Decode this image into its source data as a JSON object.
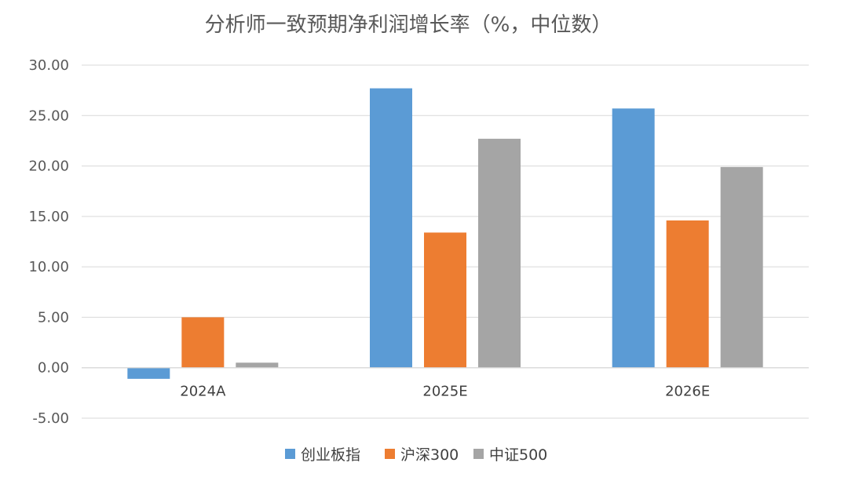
{
  "chart_data": {
    "type": "bar",
    "title": "分析师一致预期净利润增长率（%，中位数）",
    "categories": [
      "2024A",
      "2025E",
      "2026E"
    ],
    "series": [
      {
        "name": "创业板指",
        "values": [
          -1.1,
          27.7,
          25.7
        ],
        "color": "#5b9bd5"
      },
      {
        "name": "沪深300",
        "values": [
          5.0,
          13.4,
          14.6
        ],
        "color": "#ed7d31"
      },
      {
        "name": "中证500",
        "values": [
          0.5,
          22.7,
          19.9
        ],
        "color": "#a5a5a5"
      }
    ],
    "ylim": [
      -5,
      30
    ],
    "yticks": [
      "-5.00",
      "0.00",
      "5.00",
      "10.00",
      "15.00",
      "20.00",
      "25.00",
      "30.00"
    ],
    "grid": true,
    "legend": "bottom"
  }
}
